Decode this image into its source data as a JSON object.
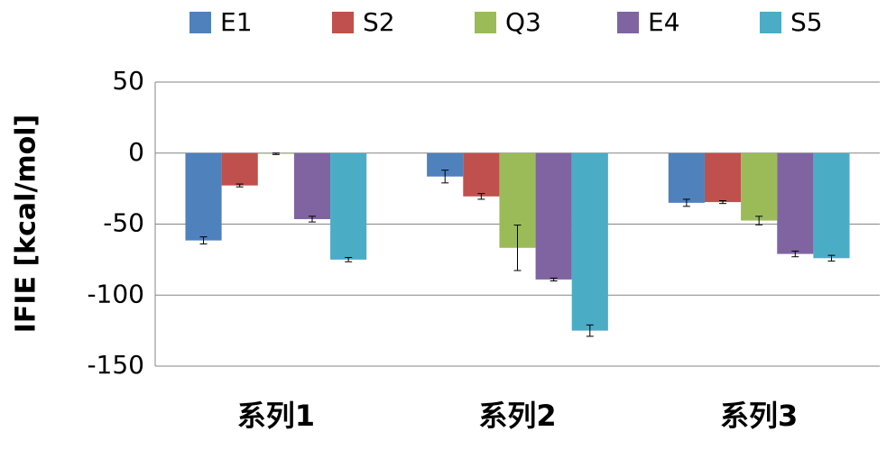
{
  "chart_data": {
    "type": "bar",
    "y_label": "IFIE [kcal/mol]",
    "categories": [
      "系列1",
      "系列2",
      "系列3"
    ],
    "series": [
      {
        "name": "E1",
        "color": "#4f81bd",
        "values": [
          -61.5,
          -16.5,
          -35
        ],
        "errors": [
          2.5,
          4.5,
          2.5
        ]
      },
      {
        "name": "S2",
        "color": "#c0504d",
        "values": [
          -22.8,
          -30.5,
          -34.5
        ],
        "errors": [
          1,
          2,
          1
        ]
      },
      {
        "name": "Q3",
        "color": "#9bbb59",
        "values": [
          -0.5,
          -66.7,
          -47.5
        ],
        "errors": [
          0.5,
          16,
          3
        ]
      },
      {
        "name": "E4",
        "color": "#8064a2",
        "values": [
          -46.5,
          -89,
          -71
        ],
        "errors": [
          2,
          1,
          2
        ]
      },
      {
        "name": "S5",
        "color": "#4bacc6",
        "values": [
          -75,
          -125,
          -74
        ],
        "errors": [
          1.5,
          4,
          2
        ]
      }
    ],
    "ylim": [
      -150,
      50
    ],
    "yticks": [
      -150,
      -100,
      -50,
      0,
      50
    ],
    "grid": true
  }
}
